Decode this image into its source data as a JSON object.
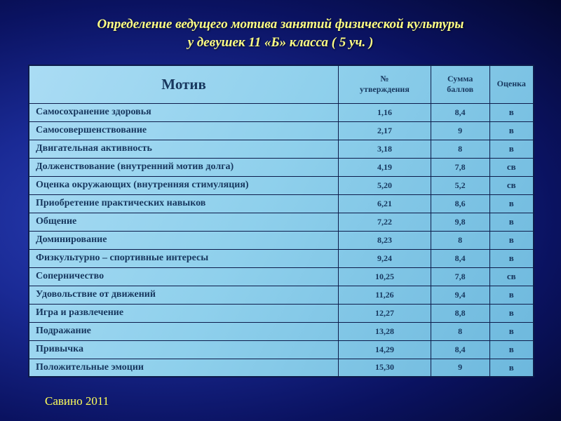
{
  "slide": {
    "title_line1": "Определение ведущего мотива занятий физической культуры",
    "title_line2": "у  девушек  11 «Б» класса ( 5 уч. )",
    "footer": "Савино 2011"
  },
  "colors": {
    "background_center": "#2b41b8",
    "background_edge": "#040831",
    "table_fill_light": "#aadcf4",
    "table_fill_dark": "#6db8dd",
    "table_border": "#0d1b4a",
    "table_text": "#17375e",
    "title_text": "#ffff85",
    "footer_text": "#ffff5a"
  },
  "table": {
    "headers": {
      "motive": "Мотив",
      "statements_line1": "№",
      "statements_line2": "утверждения",
      "score_line1": "Сумма",
      "score_line2": "баллов",
      "grade": "Оценка"
    },
    "rows": [
      {
        "motive": "Самосохранение здоровья",
        "statements": "1,16",
        "score": "8,4",
        "grade": "в"
      },
      {
        "motive": "Самосовершенствование",
        "statements": "2,17",
        "score": "9",
        "grade": "в"
      },
      {
        "motive": "Двигательная активность",
        "statements": "3,18",
        "score": "8",
        "grade": "в"
      },
      {
        "motive": "Долженствование (внутренний мотив долга)",
        "statements": "4,19",
        "score": "7,8",
        "grade": "св"
      },
      {
        "motive": "Оценка окружающих (внутренняя стимуляция)",
        "statements": "5,20",
        "score": "5,2",
        "grade": "св"
      },
      {
        "motive": "Приобретение практических навыков",
        "statements": "6,21",
        "score": "8,6",
        "grade": "в"
      },
      {
        "motive": "Общение",
        "statements": "7,22",
        "score": "9,8",
        "grade": "в"
      },
      {
        "motive": "Доминирование",
        "statements": "8,23",
        "score": "8",
        "grade": "в"
      },
      {
        "motive": "Физкультурно – спортивные интересы",
        "statements": "9,24",
        "score": "8,4",
        "grade": "в"
      },
      {
        "motive": "Соперничество",
        "statements": "10,25",
        "score": "7,8",
        "grade": "св"
      },
      {
        "motive": "Удовольствие от движений",
        "statements": "11,26",
        "score": "9,4",
        "grade": "в"
      },
      {
        "motive": "Игра и развлечение",
        "statements": "12,27",
        "score": "8,8",
        "grade": "в"
      },
      {
        "motive": "Подражание",
        "statements": "13,28",
        "score": "8",
        "grade": "в"
      },
      {
        "motive": "Привычка",
        "statements": "14,29",
        "score": "8,4",
        "grade": "в"
      },
      {
        "motive": "Положительные эмоции",
        "statements": "15,30",
        "score": "9",
        "grade": "в"
      }
    ]
  }
}
